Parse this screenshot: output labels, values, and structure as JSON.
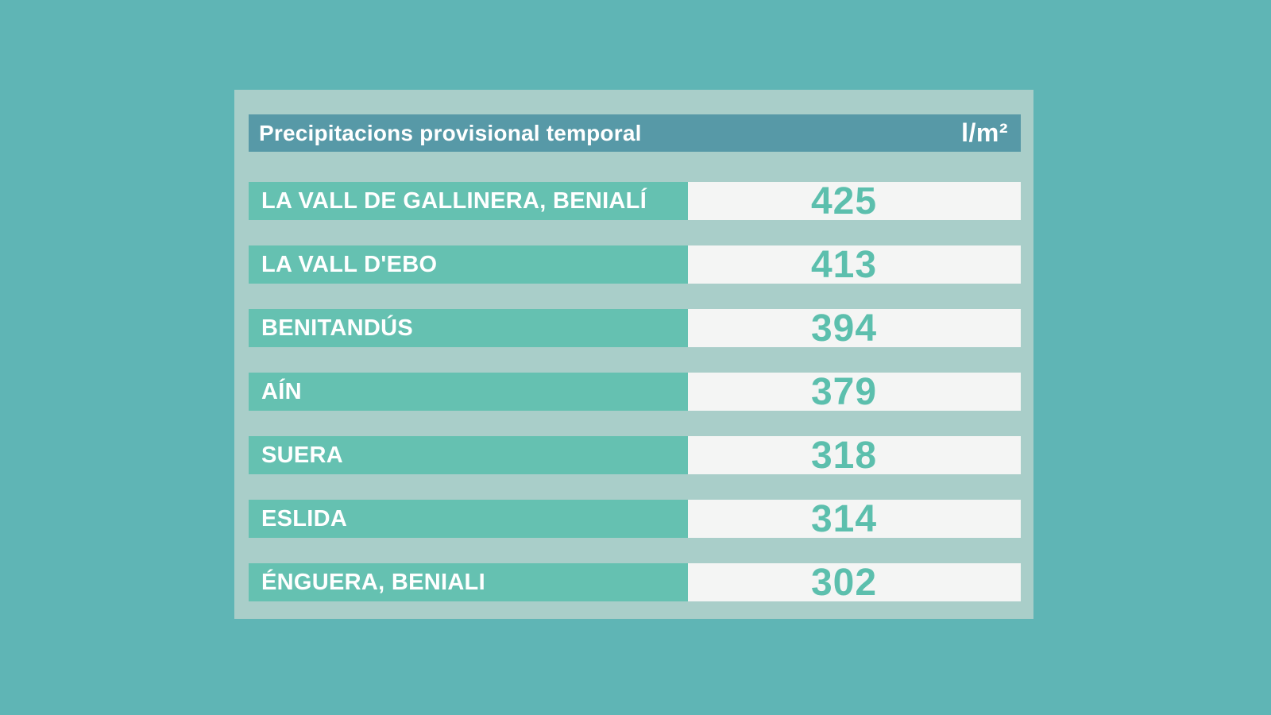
{
  "colors": {
    "page_background": "#5FB5B5",
    "panel_background": "#A9CEC9",
    "header_background": "#5799A7",
    "row_label_background": "#65C1B1",
    "value_cell_background": "#F4F5F4",
    "value_text": "#5CBFAD",
    "light_text": "#FFFFFF"
  },
  "header": {
    "title": "Precipitacions provisional temporal",
    "unit": "l/m²"
  },
  "rows": [
    {
      "label": "LA VALL DE GALLINERA, BENIALÍ",
      "value": "425"
    },
    {
      "label": "LA VALL D'EBO",
      "value": "413"
    },
    {
      "label": "BENITANDÚS",
      "value": "394"
    },
    {
      "label": "AÍN",
      "value": "379"
    },
    {
      "label": "SUERA",
      "value": "318"
    },
    {
      "label": "ESLIDA",
      "value": "314"
    },
    {
      "label": "ÉNGUERA, BENIALI",
      "value": "302"
    }
  ],
  "chart_data": {
    "type": "table",
    "title": "Precipitacions provisional temporal",
    "unit": "l/m²",
    "columns": [
      "station",
      "precipitation"
    ],
    "categories": [
      "LA VALL DE GALLINERA, BENIALÍ",
      "LA VALL D'EBO",
      "BENITANDÚS",
      "AÍN",
      "SUERA",
      "ESLIDA",
      "ÉNGUERA, BENIALI"
    ],
    "values": [
      425,
      413,
      394,
      379,
      318,
      314,
      302
    ],
    "legend_position": "none",
    "grid": false
  }
}
